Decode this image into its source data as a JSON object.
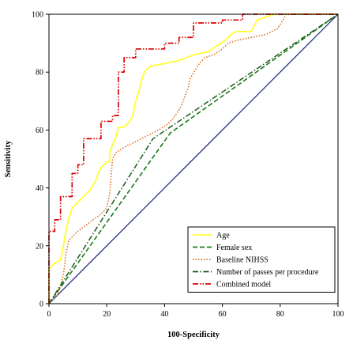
{
  "chart_data": {
    "type": "line",
    "xlabel": "100-Specificity",
    "ylabel": "Sensitivity",
    "xlim": [
      0,
      100
    ],
    "ylim": [
      0,
      100
    ],
    "x_ticks": [
      0,
      20,
      40,
      60,
      80,
      100
    ],
    "y_ticks": [
      0,
      20,
      40,
      60,
      80,
      100
    ],
    "legend_position": "bottom-right",
    "reference_line": {
      "points": [
        [
          0,
          0
        ],
        [
          100,
          100
        ]
      ],
      "color": "#1a237e"
    },
    "series": [
      {
        "name": "Age",
        "color": "#ffff33",
        "dash": "solid",
        "points": [
          [
            0,
            0
          ],
          [
            0,
            12
          ],
          [
            2,
            14
          ],
          [
            4,
            15
          ],
          [
            5,
            20
          ],
          [
            6,
            26
          ],
          [
            7,
            30
          ],
          [
            8,
            33
          ],
          [
            10,
            35
          ],
          [
            12,
            37
          ],
          [
            14,
            39
          ],
          [
            16,
            42
          ],
          [
            17,
            45
          ],
          [
            18,
            47
          ],
          [
            19,
            48
          ],
          [
            20,
            49
          ],
          [
            21,
            49
          ],
          [
            21,
            52
          ],
          [
            22,
            55
          ],
          [
            23,
            57
          ],
          [
            24,
            61
          ],
          [
            26,
            61
          ],
          [
            27,
            62
          ],
          [
            28,
            63
          ],
          [
            29,
            65
          ],
          [
            30,
            70
          ],
          [
            31,
            73
          ],
          [
            32,
            77
          ],
          [
            33,
            80
          ],
          [
            34,
            81
          ],
          [
            35,
            82
          ],
          [
            40,
            83
          ],
          [
            45,
            84
          ],
          [
            50,
            86
          ],
          [
            55,
            87
          ],
          [
            58,
            89
          ],
          [
            61,
            91
          ],
          [
            63,
            93
          ],
          [
            65,
            94
          ],
          [
            70,
            94
          ],
          [
            71,
            96
          ],
          [
            72,
            98
          ],
          [
            75,
            99
          ],
          [
            78,
            100
          ],
          [
            100,
            100
          ]
        ]
      },
      {
        "name": "Female sex",
        "color": "#1a7a1a",
        "dash": "dashed",
        "points": [
          [
            0,
            0
          ],
          [
            42,
            59
          ],
          [
            100,
            100
          ]
        ]
      },
      {
        "name": "Baseline NIHSS",
        "color": "#e07020",
        "dash": "dotted",
        "points": [
          [
            0,
            0
          ],
          [
            3,
            3
          ],
          [
            5,
            10
          ],
          [
            6,
            18
          ],
          [
            7,
            22
          ],
          [
            10,
            25
          ],
          [
            14,
            28
          ],
          [
            18,
            31
          ],
          [
            20,
            33
          ],
          [
            21,
            38
          ],
          [
            22,
            50
          ],
          [
            23,
            52
          ],
          [
            26,
            54
          ],
          [
            28,
            55
          ],
          [
            30,
            56
          ],
          [
            34,
            58
          ],
          [
            38,
            60
          ],
          [
            41,
            62
          ],
          [
            43,
            64
          ],
          [
            45,
            67
          ],
          [
            46,
            69
          ],
          [
            48,
            74
          ],
          [
            49,
            78
          ],
          [
            52,
            83
          ],
          [
            54,
            85
          ],
          [
            57,
            86
          ],
          [
            60,
            88
          ],
          [
            62,
            90
          ],
          [
            65,
            91
          ],
          [
            70,
            92
          ],
          [
            75,
            93
          ],
          [
            79,
            95
          ],
          [
            81,
            98
          ],
          [
            82,
            100
          ],
          [
            100,
            100
          ]
        ]
      },
      {
        "name": "Number of passes per procedure",
        "color": "#1a5c1a",
        "dash": "dashdot",
        "points": [
          [
            0,
            0
          ],
          [
            36,
            57
          ],
          [
            100,
            100
          ]
        ]
      },
      {
        "name": "Combined model",
        "color": "#dd0000",
        "dash": "dashdotdot",
        "points": [
          [
            0,
            0
          ],
          [
            0,
            25
          ],
          [
            2,
            25
          ],
          [
            2,
            29
          ],
          [
            4,
            29
          ],
          [
            4,
            37
          ],
          [
            8,
            37
          ],
          [
            8,
            45
          ],
          [
            10,
            45
          ],
          [
            10,
            48
          ],
          [
            12,
            48
          ],
          [
            12,
            57
          ],
          [
            18,
            57
          ],
          [
            18,
            63
          ],
          [
            22,
            63
          ],
          [
            22,
            65
          ],
          [
            24,
            65
          ],
          [
            24,
            80
          ],
          [
            26,
            80
          ],
          [
            26,
            85
          ],
          [
            30,
            85
          ],
          [
            30,
            88
          ],
          [
            40,
            88
          ],
          [
            40,
            90
          ],
          [
            45,
            90
          ],
          [
            45,
            92
          ],
          [
            50,
            92
          ],
          [
            50,
            97
          ],
          [
            60,
            97
          ],
          [
            60,
            98
          ],
          [
            67,
            98
          ],
          [
            67,
            100
          ],
          [
            100,
            100
          ]
        ]
      }
    ]
  }
}
